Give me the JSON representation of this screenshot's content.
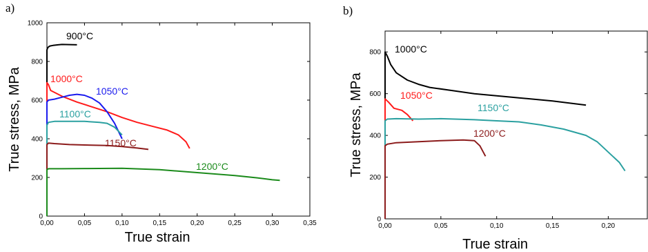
{
  "chart_data": [
    {
      "type": "line",
      "panel_label": "a)",
      "xlabel": "True strain",
      "ylabel": "True stress, MPa",
      "xlim": [
        0,
        0.35
      ],
      "ylim": [
        0,
        1000
      ],
      "x_ticks": [
        "0,00",
        "0,05",
        "0,10",
        "0,15",
        "0,20",
        "0,25",
        "0,30",
        "0,35"
      ],
      "y_ticks": [
        "0",
        "200",
        "400",
        "600",
        "800",
        "1000"
      ],
      "series": [
        {
          "name": "900°C",
          "color": "#000000",
          "x": [
            0,
            0.001,
            0.002,
            0.004,
            0.008,
            0.015,
            0.02,
            0.03,
            0.04
          ],
          "y": [
            860,
            870,
            875,
            880,
            883,
            886,
            888,
            887,
            886
          ]
        },
        {
          "name": "1000°C",
          "color": "#ff1a1a",
          "x": [
            0,
            0.002,
            0.005,
            0.02,
            0.04,
            0.06,
            0.08,
            0.1,
            0.12,
            0.14,
            0.16,
            0.175,
            0.185,
            0.19
          ],
          "y": [
            690,
            680,
            650,
            620,
            590,
            565,
            540,
            510,
            485,
            465,
            445,
            420,
            385,
            350
          ]
        },
        {
          "name": "1050°C",
          "color": "#1a1aee",
          "x": [
            0,
            0.002,
            0.01,
            0.02,
            0.03,
            0.04,
            0.05,
            0.06,
            0.07,
            0.08,
            0.09,
            0.1
          ],
          "y": [
            590,
            600,
            605,
            615,
            625,
            630,
            625,
            610,
            585,
            540,
            480,
            400
          ]
        },
        {
          "name": "1100°C",
          "color": "#2aa0a0",
          "x": [
            0,
            0.002,
            0.01,
            0.03,
            0.05,
            0.07,
            0.08,
            0.09,
            0.1
          ],
          "y": [
            470,
            485,
            490,
            490,
            490,
            485,
            480,
            460,
            420
          ]
        },
        {
          "name": "1150°C",
          "color": "#8b1a1a",
          "x": [
            0,
            0.002,
            0.01,
            0.03,
            0.05,
            0.08,
            0.1,
            0.12,
            0.135
          ],
          "y": [
            370,
            378,
            375,
            370,
            368,
            365,
            360,
            352,
            345
          ]
        },
        {
          "name": "1200°C",
          "color": "#1a8a1a",
          "x": [
            0,
            0.002,
            0.02,
            0.05,
            0.1,
            0.15,
            0.2,
            0.25,
            0.28,
            0.3,
            0.31
          ],
          "y": [
            240,
            245,
            245,
            246,
            247,
            240,
            225,
            210,
            198,
            188,
            185
          ]
        }
      ]
    },
    {
      "type": "line",
      "panel_label": "b)",
      "xlabel": "True strain",
      "ylabel": "True stress, MPa",
      "xlim": [
        0,
        0.235
      ],
      "ylim": [
        0,
        900
      ],
      "x_ticks": [
        "0,00",
        "0,05",
        "0,10",
        "0,15",
        "0,20"
      ],
      "y_ticks": [
        "0",
        "200",
        "400",
        "600",
        "800"
      ],
      "series": [
        {
          "name": "1000°C",
          "color": "#000000",
          "x": [
            0,
            0.002,
            0.005,
            0.01,
            0.02,
            0.03,
            0.04,
            0.06,
            0.08,
            0.1,
            0.12,
            0.15,
            0.18
          ],
          "y": [
            800,
            780,
            740,
            700,
            665,
            645,
            630,
            615,
            600,
            590,
            580,
            565,
            545
          ]
        },
        {
          "name": "1050°C",
          "color": "#ff1a1a",
          "x": [
            0,
            0.003,
            0.008,
            0.015,
            0.02,
            0.025
          ],
          "y": [
            575,
            560,
            530,
            520,
            500,
            470
          ]
        },
        {
          "name": "1150°C",
          "color": "#2aa0a0",
          "x": [
            0,
            0.002,
            0.01,
            0.03,
            0.05,
            0.08,
            0.1,
            0.12,
            0.14,
            0.16,
            0.18,
            0.19,
            0.2,
            0.21,
            0.215
          ],
          "y": [
            470,
            478,
            480,
            478,
            480,
            475,
            470,
            465,
            450,
            430,
            400,
            370,
            320,
            270,
            230
          ]
        },
        {
          "name": "1200°C",
          "color": "#8b1a1a",
          "x": [
            0,
            0.002,
            0.01,
            0.03,
            0.05,
            0.07,
            0.08,
            0.085,
            0.09
          ],
          "y": [
            350,
            358,
            365,
            370,
            375,
            378,
            375,
            350,
            300
          ]
        }
      ]
    }
  ]
}
